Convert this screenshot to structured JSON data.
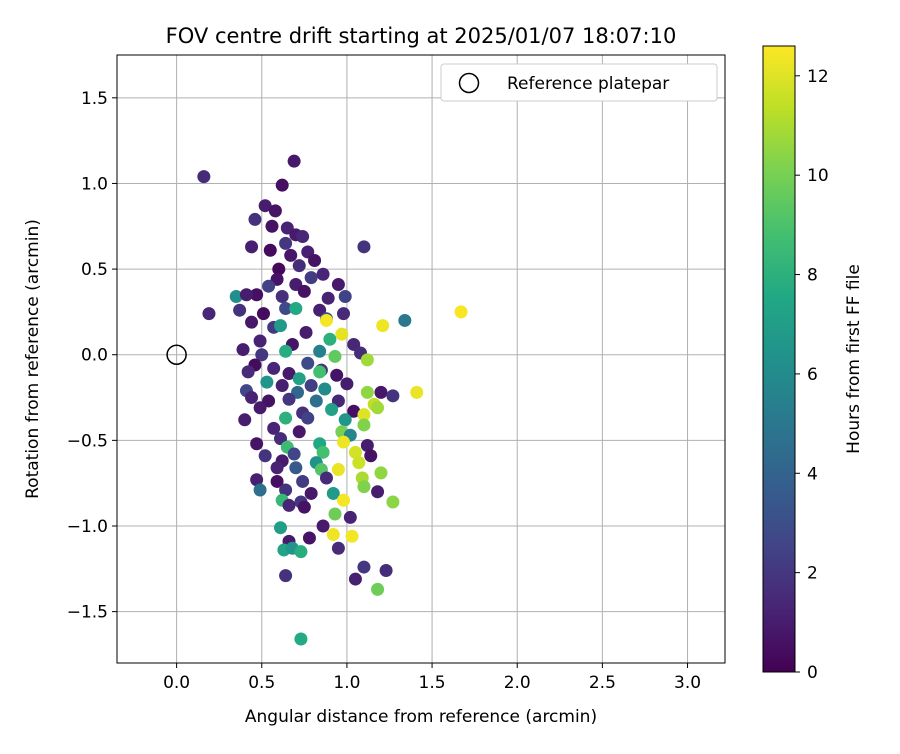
{
  "chart_data": {
    "type": "scatter",
    "title": "FOV centre drift starting at 2025/01/07 18:07:10",
    "xlabel": "Angular distance from reference (arcmin)",
    "ylabel": "Rotation from reference (arcmin)",
    "xlim": [
      -0.35,
      3.22
    ],
    "ylim": [
      -1.8,
      1.75
    ],
    "x_ticks": [
      0.0,
      0.5,
      1.0,
      1.5,
      2.0,
      2.5,
      3.0
    ],
    "x_tick_labels": [
      "0.0",
      "0.5",
      "1.0",
      "1.5",
      "2.0",
      "2.5",
      "3.0"
    ],
    "y_ticks": [
      -1.5,
      -1.0,
      -0.5,
      0.0,
      0.5,
      1.0,
      1.5
    ],
    "y_tick_labels": [
      "−1.5",
      "−1.0",
      "−0.5",
      "0.0",
      "0.5",
      "1.0",
      "1.5"
    ],
    "grid": true,
    "legend": {
      "placement": "upper-right",
      "entries": [
        "Reference platepar"
      ]
    },
    "reference_point": {
      "x": 0.0,
      "y": 0.0,
      "label": "Reference platepar"
    },
    "colorbar": {
      "label": "Hours from first FF file",
      "min": 0,
      "max": 12.6,
      "ticks": [
        0,
        2,
        4,
        6,
        8,
        10,
        12
      ],
      "tick_labels": [
        "0",
        "2",
        "4",
        "6",
        "8",
        "10",
        "12"
      ],
      "colormap": "viridis"
    },
    "series": [
      {
        "points": [
          {
            "x": 0.16,
            "y": 1.04,
            "h": 1.5
          },
          {
            "x": 0.69,
            "y": 1.13,
            "h": 0.8
          },
          {
            "x": 0.62,
            "y": 0.99,
            "h": 0.5
          },
          {
            "x": 0.52,
            "y": 0.87,
            "h": 1.0
          },
          {
            "x": 0.58,
            "y": 0.84,
            "h": 0.7
          },
          {
            "x": 0.46,
            "y": 0.79,
            "h": 1.8
          },
          {
            "x": 0.65,
            "y": 0.74,
            "h": 1.2
          },
          {
            "x": 0.7,
            "y": 0.7,
            "h": 0.9
          },
          {
            "x": 0.56,
            "y": 0.75,
            "h": 0.6
          },
          {
            "x": 0.44,
            "y": 0.63,
            "h": 1.1
          },
          {
            "x": 0.55,
            "y": 0.61,
            "h": 0.4
          },
          {
            "x": 0.64,
            "y": 0.65,
            "h": 2.0
          },
          {
            "x": 0.74,
            "y": 0.69,
            "h": 1.4
          },
          {
            "x": 0.77,
            "y": 0.6,
            "h": 1.1
          },
          {
            "x": 1.1,
            "y": 0.63,
            "h": 1.9
          },
          {
            "x": 0.67,
            "y": 0.58,
            "h": 0.8
          },
          {
            "x": 0.81,
            "y": 0.55,
            "h": 0.6
          },
          {
            "x": 0.6,
            "y": 0.5,
            "h": 0.3
          },
          {
            "x": 0.72,
            "y": 0.52,
            "h": 1.6
          },
          {
            "x": 0.86,
            "y": 0.47,
            "h": 1.3
          },
          {
            "x": 0.59,
            "y": 0.44,
            "h": 0.7
          },
          {
            "x": 0.7,
            "y": 0.41,
            "h": 1.0
          },
          {
            "x": 0.79,
            "y": 0.45,
            "h": 2.2
          },
          {
            "x": 0.95,
            "y": 0.41,
            "h": 0.9
          },
          {
            "x": 0.54,
            "y": 0.4,
            "h": 2.4
          },
          {
            "x": 0.47,
            "y": 0.35,
            "h": 0.5
          },
          {
            "x": 0.62,
            "y": 0.34,
            "h": 1.7
          },
          {
            "x": 0.75,
            "y": 0.37,
            "h": 0.6
          },
          {
            "x": 0.89,
            "y": 0.33,
            "h": 1.2
          },
          {
            "x": 0.99,
            "y": 0.34,
            "h": 2.5
          },
          {
            "x": 0.35,
            "y": 0.34,
            "h": 6.2
          },
          {
            "x": 0.41,
            "y": 0.35,
            "h": 1.0
          },
          {
            "x": 0.19,
            "y": 0.24,
            "h": 1.3
          },
          {
            "x": 0.37,
            "y": 0.26,
            "h": 1.8
          },
          {
            "x": 0.51,
            "y": 0.24,
            "h": 0.4
          },
          {
            "x": 0.64,
            "y": 0.27,
            "h": 2.8
          },
          {
            "x": 0.7,
            "y": 0.27,
            "h": 7.6
          },
          {
            "x": 0.84,
            "y": 0.26,
            "h": 1.1
          },
          {
            "x": 0.88,
            "y": 0.21,
            "h": 3.0
          },
          {
            "x": 0.98,
            "y": 0.24,
            "h": 1.5
          },
          {
            "x": 1.34,
            "y": 0.2,
            "h": 5.0
          },
          {
            "x": 1.67,
            "y": 0.25,
            "h": 12.5
          },
          {
            "x": 1.21,
            "y": 0.17,
            "h": 12.3
          },
          {
            "x": 0.88,
            "y": 0.2,
            "h": 12.4
          },
          {
            "x": 0.44,
            "y": 0.19,
            "h": 0.8
          },
          {
            "x": 0.57,
            "y": 0.16,
            "h": 2.1
          },
          {
            "x": 0.61,
            "y": 0.17,
            "h": 6.8
          },
          {
            "x": 0.76,
            "y": 0.13,
            "h": 1.0
          },
          {
            "x": 0.97,
            "y": 0.12,
            "h": 12.1
          },
          {
            "x": 0.9,
            "y": 0.09,
            "h": 8.0
          },
          {
            "x": 1.04,
            "y": 0.06,
            "h": 1.4
          },
          {
            "x": 0.49,
            "y": 0.08,
            "h": 1.2
          },
          {
            "x": 0.68,
            "y": 0.06,
            "h": 0.7
          },
          {
            "x": 0.39,
            "y": 0.03,
            "h": 1.0
          },
          {
            "x": 0.64,
            "y": 0.02,
            "h": 7.8
          },
          {
            "x": 0.84,
            "y": 0.02,
            "h": 5.5
          },
          {
            "x": 0.93,
            "y": -0.01,
            "h": 9.5
          },
          {
            "x": 1.08,
            "y": 0.01,
            "h": 1.6
          },
          {
            "x": 0.5,
            "y": 0.0,
            "h": 2.0
          },
          {
            "x": 0.77,
            "y": -0.05,
            "h": 2.9
          },
          {
            "x": 1.12,
            "y": -0.03,
            "h": 10.8
          },
          {
            "x": 0.46,
            "y": -0.06,
            "h": 0.4
          },
          {
            "x": 0.57,
            "y": -0.08,
            "h": 1.3
          },
          {
            "x": 0.85,
            "y": -0.09,
            "h": 1.8
          },
          {
            "x": 0.42,
            "y": -0.1,
            "h": 1.5
          },
          {
            "x": 0.66,
            "y": -0.11,
            "h": 0.9
          },
          {
            "x": 0.84,
            "y": -0.1,
            "h": 8.8
          },
          {
            "x": 0.94,
            "y": -0.12,
            "h": 0.7
          },
          {
            "x": 0.53,
            "y": -0.16,
            "h": 6.5
          },
          {
            "x": 0.72,
            "y": -0.14,
            "h": 7.2
          },
          {
            "x": 0.62,
            "y": -0.18,
            "h": 1.1
          },
          {
            "x": 0.79,
            "y": -0.18,
            "h": 2.3
          },
          {
            "x": 1.0,
            "y": -0.17,
            "h": 1.0
          },
          {
            "x": 0.41,
            "y": -0.21,
            "h": 2.6
          },
          {
            "x": 0.71,
            "y": -0.22,
            "h": 4.2
          },
          {
            "x": 0.87,
            "y": -0.2,
            "h": 6.0
          },
          {
            "x": 1.12,
            "y": -0.22,
            "h": 10.5
          },
          {
            "x": 1.2,
            "y": -0.22,
            "h": 0.8
          },
          {
            "x": 1.27,
            "y": -0.24,
            "h": 1.9
          },
          {
            "x": 1.41,
            "y": -0.22,
            "h": 12.2
          },
          {
            "x": 0.44,
            "y": -0.25,
            "h": 1.2
          },
          {
            "x": 0.54,
            "y": -0.27,
            "h": 0.6
          },
          {
            "x": 0.66,
            "y": -0.26,
            "h": 2.0
          },
          {
            "x": 0.82,
            "y": -0.27,
            "h": 4.6
          },
          {
            "x": 0.95,
            "y": -0.27,
            "h": 1.4
          },
          {
            "x": 1.16,
            "y": -0.29,
            "h": 11.4
          },
          {
            "x": 0.49,
            "y": -0.31,
            "h": 0.9
          },
          {
            "x": 0.74,
            "y": -0.34,
            "h": 1.7
          },
          {
            "x": 0.91,
            "y": -0.32,
            "h": 7.2
          },
          {
            "x": 1.04,
            "y": -0.33,
            "h": 0.5
          },
          {
            "x": 1.18,
            "y": -0.31,
            "h": 10.8
          },
          {
            "x": 0.4,
            "y": -0.38,
            "h": 1.0
          },
          {
            "x": 0.64,
            "y": -0.37,
            "h": 8.0
          },
          {
            "x": 0.77,
            "y": -0.37,
            "h": 2.4
          },
          {
            "x": 0.99,
            "y": -0.38,
            "h": 6.6
          },
          {
            "x": 1.1,
            "y": -0.35,
            "h": 12.0
          },
          {
            "x": 0.57,
            "y": -0.43,
            "h": 1.3
          },
          {
            "x": 0.72,
            "y": -0.45,
            "h": 0.8
          },
          {
            "x": 0.97,
            "y": -0.45,
            "h": 10.0
          },
          {
            "x": 1.1,
            "y": -0.41,
            "h": 10.2
          },
          {
            "x": 0.47,
            "y": -0.52,
            "h": 0.7
          },
          {
            "x": 0.61,
            "y": -0.49,
            "h": 1.6
          },
          {
            "x": 0.84,
            "y": -0.52,
            "h": 7.5
          },
          {
            "x": 1.02,
            "y": -0.47,
            "h": 5.8
          },
          {
            "x": 0.65,
            "y": -0.54,
            "h": 8.6
          },
          {
            "x": 0.98,
            "y": -0.51,
            "h": 12.3
          },
          {
            "x": 1.12,
            "y": -0.53,
            "h": 1.0
          },
          {
            "x": 0.52,
            "y": -0.59,
            "h": 1.9
          },
          {
            "x": 0.69,
            "y": -0.58,
            "h": 2.6
          },
          {
            "x": 0.86,
            "y": -0.57,
            "h": 8.8
          },
          {
            "x": 1.05,
            "y": -0.57,
            "h": 11.8
          },
          {
            "x": 1.14,
            "y": -0.59,
            "h": 0.6
          },
          {
            "x": 0.62,
            "y": -0.62,
            "h": 0.9
          },
          {
            "x": 0.82,
            "y": -0.63,
            "h": 6.4
          },
          {
            "x": 1.07,
            "y": -0.63,
            "h": 11.6
          },
          {
            "x": 0.59,
            "y": -0.66,
            "h": 1.2
          },
          {
            "x": 0.7,
            "y": -0.66,
            "h": 3.5
          },
          {
            "x": 0.85,
            "y": -0.67,
            "h": 9.2
          },
          {
            "x": 0.95,
            "y": -0.67,
            "h": 12.2
          },
          {
            "x": 1.2,
            "y": -0.69,
            "h": 10.5
          },
          {
            "x": 0.47,
            "y": -0.73,
            "h": 1.1
          },
          {
            "x": 0.59,
            "y": -0.74,
            "h": 0.5
          },
          {
            "x": 0.74,
            "y": -0.74,
            "h": 2.2
          },
          {
            "x": 0.88,
            "y": -0.72,
            "h": 1.5
          },
          {
            "x": 1.09,
            "y": -0.72,
            "h": 11.0
          },
          {
            "x": 0.49,
            "y": -0.79,
            "h": 4.6
          },
          {
            "x": 0.64,
            "y": -0.79,
            "h": 1.8
          },
          {
            "x": 0.79,
            "y": -0.81,
            "h": 0.8
          },
          {
            "x": 0.92,
            "y": -0.81,
            "h": 6.8
          },
          {
            "x": 1.1,
            "y": -0.77,
            "h": 10.2
          },
          {
            "x": 1.18,
            "y": -0.8,
            "h": 1.0
          },
          {
            "x": 0.62,
            "y": -0.85,
            "h": 8.4
          },
          {
            "x": 0.73,
            "y": -0.86,
            "h": 2.0
          },
          {
            "x": 0.98,
            "y": -0.85,
            "h": 12.4
          },
          {
            "x": 1.27,
            "y": -0.86,
            "h": 10.4
          },
          {
            "x": 0.66,
            "y": -0.88,
            "h": 1.3
          },
          {
            "x": 0.75,
            "y": -0.89,
            "h": 0.6
          },
          {
            "x": 0.93,
            "y": -0.93,
            "h": 9.8
          },
          {
            "x": 1.02,
            "y": -0.95,
            "h": 1.2
          },
          {
            "x": 0.86,
            "y": -1.0,
            "h": 0.9
          },
          {
            "x": 0.61,
            "y": -1.01,
            "h": 7.0
          },
          {
            "x": 0.92,
            "y": -1.05,
            "h": 12.3
          },
          {
            "x": 1.03,
            "y": -1.06,
            "h": 12.4
          },
          {
            "x": 0.78,
            "y": -1.07,
            "h": 0.7
          },
          {
            "x": 0.66,
            "y": -1.09,
            "h": 0.9
          },
          {
            "x": 0.95,
            "y": -1.13,
            "h": 1.5
          },
          {
            "x": 0.63,
            "y": -1.14,
            "h": 7.3
          },
          {
            "x": 0.68,
            "y": -1.13,
            "h": 6.5
          },
          {
            "x": 0.73,
            "y": -1.15,
            "h": 7.8
          },
          {
            "x": 1.1,
            "y": -1.24,
            "h": 2.0
          },
          {
            "x": 1.23,
            "y": -1.26,
            "h": 1.6
          },
          {
            "x": 0.64,
            "y": -1.29,
            "h": 1.8
          },
          {
            "x": 1.05,
            "y": -1.31,
            "h": 1.1
          },
          {
            "x": 1.18,
            "y": -1.37,
            "h": 9.8
          },
          {
            "x": 0.73,
            "y": -1.66,
            "h": 7.6
          }
        ]
      }
    ]
  }
}
